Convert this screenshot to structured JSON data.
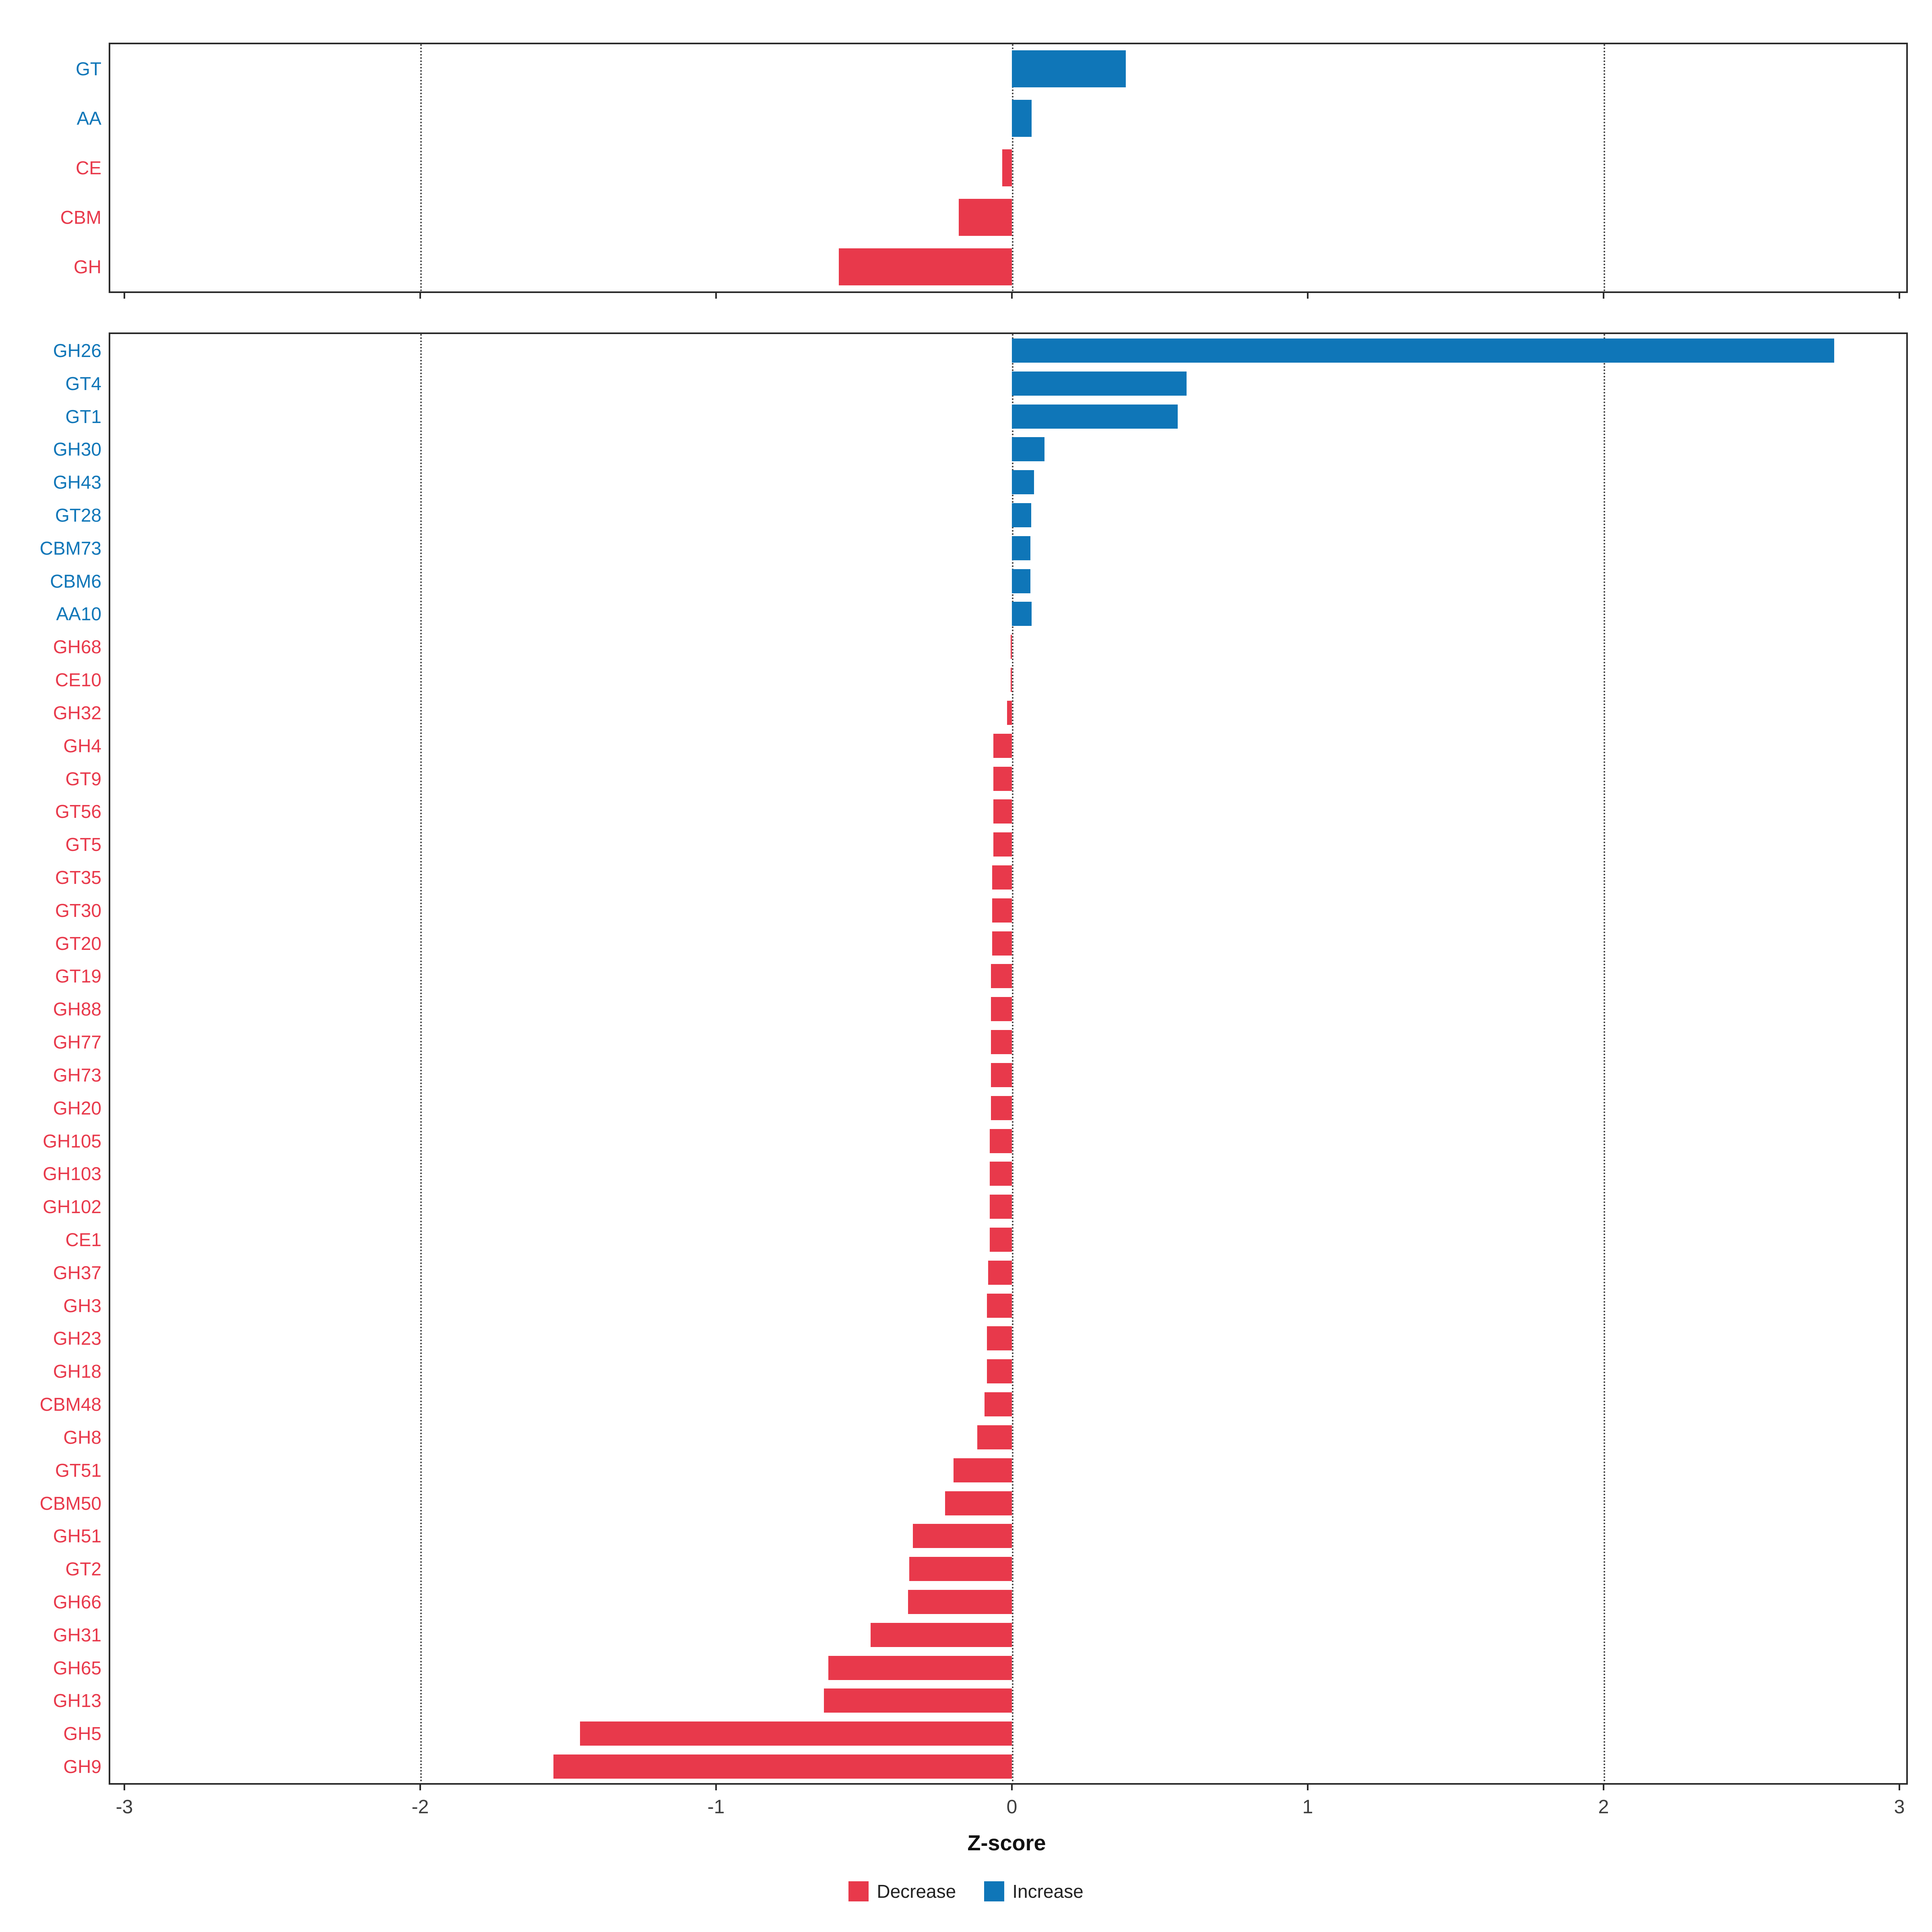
{
  "chart_data": {
    "type": "bar",
    "orientation": "horizontal",
    "title": "",
    "xlabel": "Z-score",
    "ylabel": "",
    "xlim": [
      -3,
      3
    ],
    "x_ticks": [
      "-3",
      "-2",
      "-1",
      "0",
      "1",
      "2",
      "3"
    ],
    "x_tick_values": [
      -3,
      -2,
      -1,
      0,
      1,
      2,
      3
    ],
    "gridlines_dotted_at": [
      -2,
      0,
      2
    ],
    "grid": "vertical-dotted",
    "colors": {
      "decrease": "#E8394B",
      "increase": "#0F76B8",
      "panel_border": "#2b2b2b",
      "background": "#ffffff"
    },
    "legend": {
      "position": "bottom-center",
      "items": [
        {
          "label": "Decrease",
          "color_key": "decrease"
        },
        {
          "label": "Increase",
          "color_key": "increase"
        }
      ]
    },
    "panels": [
      {
        "name": "cazyme-class-panel",
        "categories": [
          "GT",
          "AA",
          "CE",
          "CBM",
          "GH"
        ],
        "values": [
          0.385,
          0.067,
          -0.033,
          -0.18,
          -0.585
        ]
      },
      {
        "name": "cazyme-family-panel",
        "categories": [
          "GH26",
          "GT4",
          "GT1",
          "GH30",
          "GH43",
          "GT28",
          "CBM73",
          "CBM6",
          "AA10",
          "GH68",
          "CE10",
          "GH32",
          "GH4",
          "GT9",
          "GT56",
          "GT5",
          "GT35",
          "GT30",
          "GT20",
          "GT19",
          "GH88",
          "GH77",
          "GH73",
          "GH20",
          "GH105",
          "GH103",
          "GH102",
          "CE1",
          "GH37",
          "GH3",
          "GH23",
          "GH18",
          "CBM48",
          "GH8",
          "GT51",
          "CBM50",
          "GH51",
          "GT2",
          "GH66",
          "GH31",
          "GH65",
          "GH13",
          "GH5",
          "GH9"
        ],
        "values": [
          2.78,
          0.59,
          0.56,
          0.11,
          0.075,
          0.065,
          0.063,
          0.063,
          0.067,
          -0.004,
          -0.004,
          -0.017,
          -0.063,
          -0.063,
          -0.063,
          -0.063,
          -0.067,
          -0.067,
          -0.067,
          -0.071,
          -0.071,
          -0.071,
          -0.071,
          -0.071,
          -0.075,
          -0.075,
          -0.075,
          -0.075,
          -0.08,
          -0.084,
          -0.084,
          -0.084,
          -0.092,
          -0.117,
          -0.197,
          -0.226,
          -0.335,
          -0.347,
          -0.351,
          -0.477,
          -0.62,
          -0.636,
          -1.46,
          -1.55
        ]
      }
    ]
  }
}
